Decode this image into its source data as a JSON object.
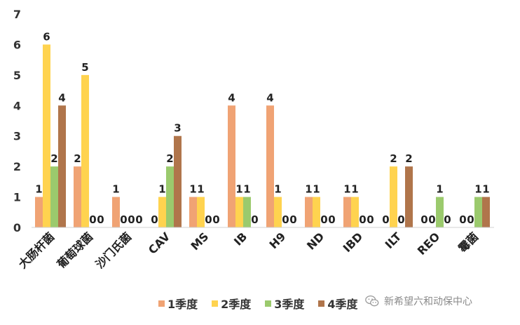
{
  "chart_data": {
    "type": "bar",
    "categories": [
      "大肠杆菌",
      "葡萄球菌",
      "沙门氏菌",
      "CAV",
      "MS",
      "IB",
      "H9",
      "ND",
      "IBD",
      "ILT",
      "REO",
      "霉菌"
    ],
    "series": [
      {
        "name": "1季度",
        "color": "#f0a374",
        "values": [
          1,
          2,
          1,
          0,
          1,
          4,
          4,
          1,
          1,
          0,
          0,
          0
        ]
      },
      {
        "name": "2季度",
        "color": "#ffd34f",
        "values": [
          6,
          5,
          0,
          1,
          1,
          1,
          1,
          1,
          1,
          2,
          0,
          0
        ]
      },
      {
        "name": "3季度",
        "color": "#9bca6d",
        "values": [
          2,
          0,
          0,
          2,
          0,
          1,
          0,
          0,
          0,
          0,
          1,
          1
        ]
      },
      {
        "name": "4季度",
        "color": "#b0754b",
        "values": [
          4,
          0,
          0,
          3,
          0,
          0,
          0,
          0,
          0,
          2,
          0,
          1
        ]
      }
    ],
    "y_ticks": [
      "0",
      "1",
      "2",
      "3",
      "4",
      "5",
      "6",
      "7"
    ],
    "ylim": [
      0,
      7
    ],
    "grid": false,
    "legend": "bottom"
  },
  "watermark": {
    "text": "新希望六和动保中心",
    "icon": "wechat-icon"
  }
}
